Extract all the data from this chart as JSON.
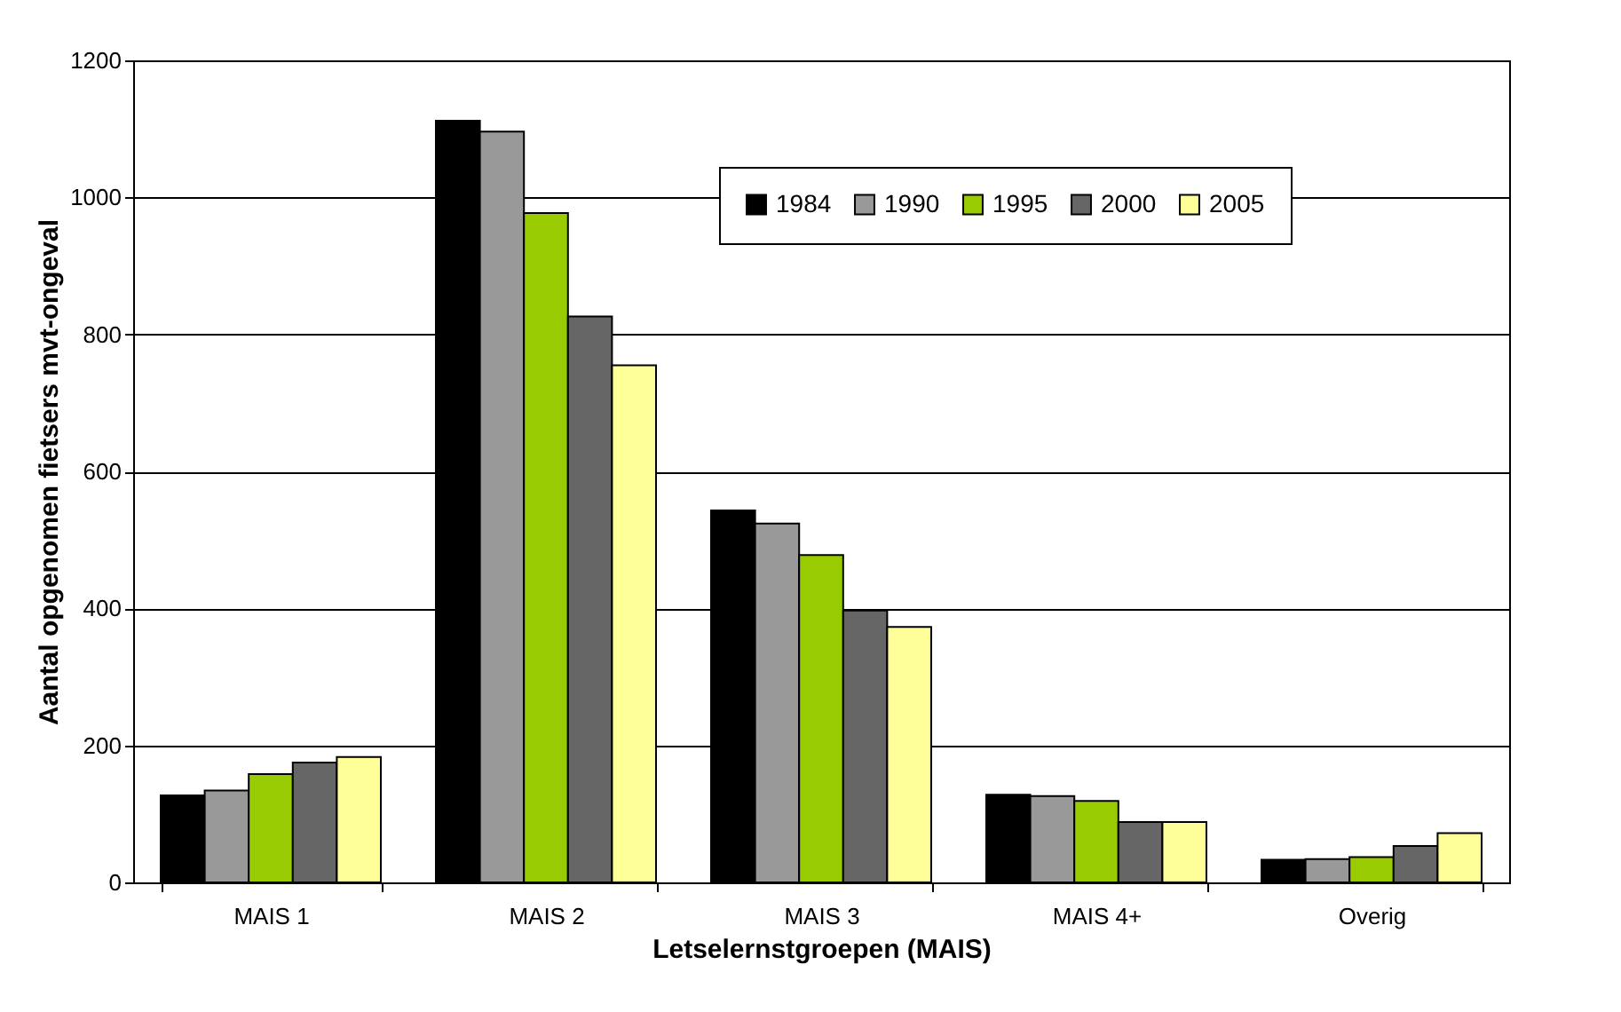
{
  "chart_data": {
    "type": "bar",
    "xlabel": "Letselernstgroepen (MAIS)",
    "ylabel": "Aantal opgenomen fietsers mvt-ongeval",
    "categories": [
      "MAIS 1",
      "MAIS 2",
      "MAIS 3",
      "MAIS 4+",
      "Overig"
    ],
    "series": [
      {
        "name": "1984",
        "color": "#000000",
        "values": [
          127,
          1112,
          543,
          128,
          33
        ]
      },
      {
        "name": "1990",
        "color": "#999999",
        "values": [
          134,
          1096,
          524,
          126,
          34
        ]
      },
      {
        "name": "1995",
        "color": "#99cc00",
        "values": [
          158,
          977,
          478,
          119,
          37
        ]
      },
      {
        "name": "2000",
        "color": "#666666",
        "values": [
          175,
          826,
          397,
          88,
          53
        ]
      },
      {
        "name": "2005",
        "color": "#ffff99",
        "values": [
          183,
          755,
          373,
          88,
          72
        ]
      }
    ],
    "ylim": [
      0,
      1200
    ],
    "yticks": [
      0,
      200,
      400,
      600,
      800,
      1000,
      1200
    ],
    "grid": "y",
    "legend": "top right"
  }
}
